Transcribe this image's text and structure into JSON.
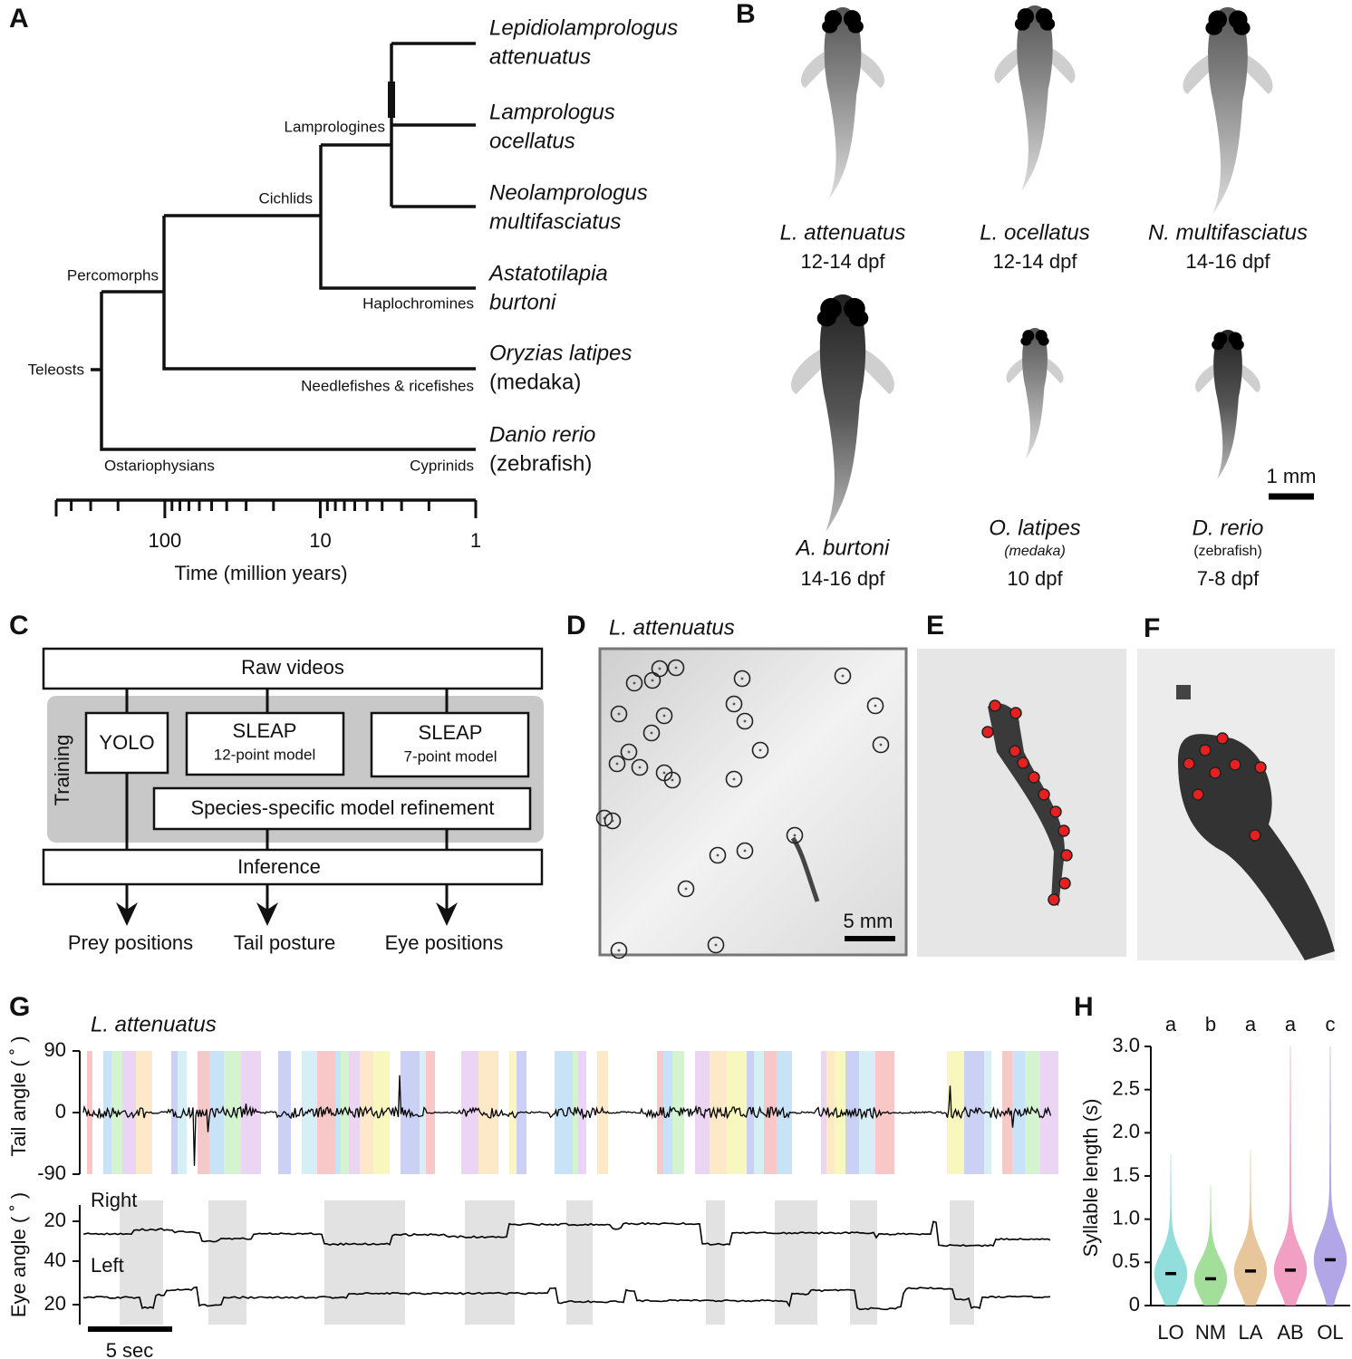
{
  "panel_labels": [
    "A",
    "B",
    "C",
    "D",
    "E",
    "F",
    "G",
    "H"
  ],
  "phylogeny": {
    "species": [
      {
        "lines": [
          "Lepidiolamprologus",
          "attenuatus"
        ],
        "color": "#c58c37"
      },
      {
        "lines": [
          "Lamprologus",
          "ocellatus"
        ],
        "color": "#3ebcc6"
      },
      {
        "lines": [
          "Neolamprologus",
          "multifasciatus"
        ],
        "color": "#5cbf45"
      },
      {
        "lines": [
          "Astatotilapia",
          "burtoni"
        ],
        "color": "#d23a8c"
      },
      {
        "lines": [
          "Oryzias latipes",
          "(medaka)"
        ],
        "color": "#5a3dbd"
      },
      {
        "lines": [
          "Danio rerio",
          "(zebrafish)"
        ],
        "color": "#8c8c8c"
      }
    ],
    "clades": [
      "Lamprologines",
      "Cichlids",
      "Percomorphs",
      "Haplochromines",
      "Teleosts",
      "Needlefishes & ricefishes",
      "Ostariophysians",
      "Cyprinids"
    ],
    "time_axis": {
      "label": "Time (million years)",
      "log": true,
      "xlim": [
        500,
        1
      ],
      "ticks": [
        100,
        10,
        1
      ],
      "minor_ticks": [
        400,
        300,
        200,
        90,
        80,
        70,
        60,
        50,
        40,
        30,
        20,
        9,
        8,
        7,
        6,
        5,
        4,
        3,
        2
      ]
    }
  },
  "larvae": {
    "fish": [
      {
        "species": "L. attenuatus",
        "age": "12-14 dpf",
        "color": "#c58c37"
      },
      {
        "species": "L. ocellatus",
        "age": "12-14 dpf",
        "color": "#3ebcc6"
      },
      {
        "species": "N. multifasciatus",
        "age": "14-16 dpf",
        "color": "#5cbf45"
      },
      {
        "species": "A. burtoni",
        "age": "14-16 dpf",
        "color": "#d23a8c"
      },
      {
        "species": "O. latipes",
        "common": "(medaka)",
        "age": "10 dpf",
        "color": "#5a3dbd"
      },
      {
        "species": "D. rerio",
        "common": "(zebrafish)",
        "age": "7-8 dpf",
        "color": "#8c8c8c"
      }
    ],
    "scale": "1 mm"
  },
  "pipeline": {
    "input": "Raw videos",
    "training_label": "Training",
    "models": [
      {
        "name": "YOLO"
      },
      {
        "name": "SLEAP",
        "detail": "12-point model"
      },
      {
        "name": "SLEAP",
        "detail": "7-point model"
      }
    ],
    "refinement": "Species-specific model refinement",
    "inference": "Inference",
    "outputs": [
      "Prey positions",
      "Tail posture",
      "Eye positions"
    ]
  },
  "tracking": {
    "species": "L. attenuatus",
    "color": "#c58c37",
    "scale": "5 mm"
  },
  "traces": {
    "species": "L. attenuatus",
    "color": "#c58c37",
    "tail": {
      "ylabel": "Tail angle ( ˚ )",
      "ylim": [
        -90,
        90
      ],
      "yticks": [
        90,
        0,
        -90
      ]
    },
    "eye": {
      "ylabel": "Eye angle ( ˚ )",
      "right": "Right",
      "left": "Left",
      "yticks": [
        20,
        40,
        20
      ]
    },
    "time_scale": "5 sec"
  },
  "chart_data": {
    "type": "violin",
    "ylabel": "Syllable length (s)",
    "categories": [
      "LO",
      "NM",
      "LA",
      "AB",
      "OL"
    ],
    "colors": [
      "#7fd8d6",
      "#93d98a",
      "#e3bc8a",
      "#ef8fb9",
      "#a596e3"
    ],
    "values": [
      0.37,
      0.31,
      0.4,
      0.41,
      0.53
    ],
    "maxima": [
      1.75,
      1.4,
      1.8,
      3.0,
      3.0
    ],
    "significance": [
      "a",
      "b",
      "a",
      "a",
      "c"
    ],
    "ylim": [
      0,
      3
    ],
    "yticks": [
      0,
      0.5,
      {
        "value": 1,
        "label": "1.0"
      },
      1.5,
      {
        "value": 2,
        "label": "2.0"
      },
      2.5,
      {
        "value": 3,
        "label": "3.0"
      }
    ]
  }
}
